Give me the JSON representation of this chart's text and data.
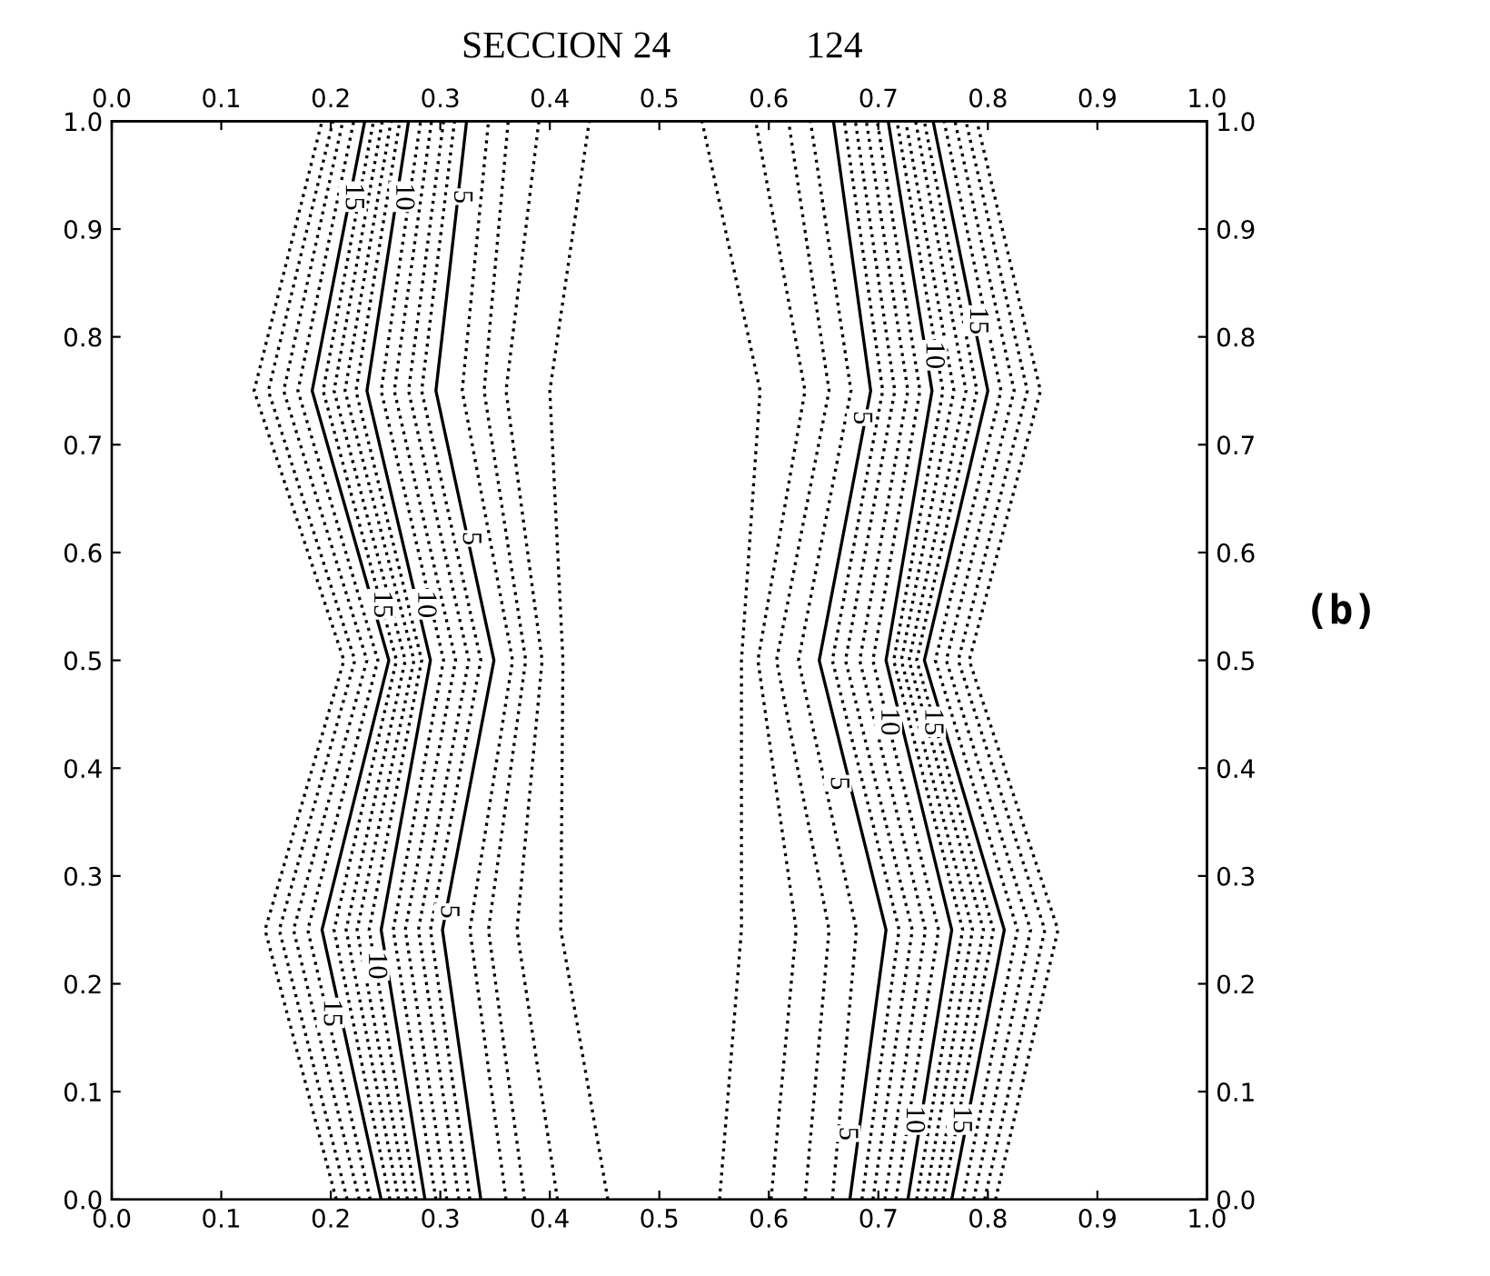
{
  "chart_data": {
    "type": "line",
    "title": "SECCION 24",
    "subtitle": "124",
    "xlim": [
      0,
      1
    ],
    "ylim": [
      0,
      1
    ],
    "x2lim": [
      0,
      1
    ],
    "y2lim": [
      0,
      1
    ],
    "xticks": [
      {
        "value": 0,
        "label": "0.0"
      },
      {
        "value": 0.1,
        "label": "0.1"
      },
      {
        "value": 0.2,
        "label": "0.2"
      },
      {
        "value": 0.3,
        "label": "0.3"
      },
      {
        "value": 0.4,
        "label": "0.4"
      },
      {
        "value": 0.5,
        "label": "0.5"
      },
      {
        "value": 0.6,
        "label": "0.6"
      },
      {
        "value": 0.7,
        "label": "0.7"
      },
      {
        "value": 0.8,
        "label": "0.8"
      },
      {
        "value": 0.9,
        "label": "0.9"
      },
      {
        "value": 1,
        "label": "1.0"
      }
    ],
    "x2ticks": [
      {
        "value": 0,
        "label": "0.0"
      },
      {
        "value": 0.1,
        "label": "0.1"
      },
      {
        "value": 0.2,
        "label": "0.2"
      },
      {
        "value": 0.3,
        "label": "0.3"
      },
      {
        "value": 0.4,
        "label": "0.4"
      },
      {
        "value": 0.5,
        "label": "0.5"
      },
      {
        "value": 0.6,
        "label": "0.6"
      },
      {
        "value": 0.7,
        "label": "0.7"
      },
      {
        "value": 0.8,
        "label": "0.8"
      },
      {
        "value": 0.9,
        "label": "0.9"
      },
      {
        "value": 1,
        "label": "1.0"
      }
    ],
    "yticks": [
      {
        "value": 0,
        "label": "0.0"
      },
      {
        "value": 0.1,
        "label": "0.1"
      },
      {
        "value": 0.2,
        "label": "0.2"
      },
      {
        "value": 0.3,
        "label": "0.3"
      },
      {
        "value": 0.4,
        "label": "0.4"
      },
      {
        "value": 0.5,
        "label": "0.5"
      },
      {
        "value": 0.6,
        "label": "0.6"
      },
      {
        "value": 0.7,
        "label": "0.7"
      },
      {
        "value": 0.8,
        "label": "0.8"
      },
      {
        "value": 0.9,
        "label": "0.9"
      },
      {
        "value": 1,
        "label": "1.0"
      }
    ],
    "y2ticks": [
      {
        "value": 0,
        "label": "0.0"
      },
      {
        "value": 0.1,
        "label": "0.1"
      },
      {
        "value": 0.2,
        "label": "0.2"
      },
      {
        "value": 0.3,
        "label": "0.3"
      },
      {
        "value": 0.4,
        "label": "0.4"
      },
      {
        "value": 0.5,
        "label": "0.5"
      },
      {
        "value": 0.6,
        "label": "0.6"
      },
      {
        "value": 0.7,
        "label": "0.7"
      },
      {
        "value": 0.8,
        "label": "0.8"
      },
      {
        "value": 0.9,
        "label": "0.9"
      },
      {
        "value": 1,
        "label": "1.0"
      }
    ],
    "grid": false,
    "legend": false,
    "marker": "none",
    "annotations": [
      {
        "text": "15",
        "x": 0.22,
        "y": 0.93
      },
      {
        "text": "10",
        "x": 0.266,
        "y": 0.93
      },
      {
        "text": "5",
        "x": 0.319,
        "y": 0.93
      },
      {
        "text": "15",
        "x": 0.246,
        "y": 0.552
      },
      {
        "text": "10",
        "x": 0.286,
        "y": 0.552
      },
      {
        "text": "5",
        "x": 0.327,
        "y": 0.613
      },
      {
        "text": "15",
        "x": 0.2,
        "y": 0.173
      },
      {
        "text": "10",
        "x": 0.241,
        "y": 0.217
      },
      {
        "text": "5",
        "x": 0.307,
        "y": 0.267
      },
      {
        "text": "5",
        "x": 0.671,
        "y": 0.061
      },
      {
        "text": "10",
        "x": 0.732,
        "y": 0.074
      },
      {
        "text": "15",
        "x": 0.775,
        "y": 0.074
      },
      {
        "text": "5",
        "x": 0.663,
        "y": 0.386
      },
      {
        "text": "10",
        "x": 0.709,
        "y": 0.443
      },
      {
        "text": "15",
        "x": 0.749,
        "y": 0.443
      },
      {
        "text": "5",
        "x": 0.684,
        "y": 0.725
      },
      {
        "text": "10",
        "x": 0.75,
        "y": 0.783
      },
      {
        "text": "15",
        "x": 0.79,
        "y": 0.815
      },
      "(b)"
    ],
    "series": [
      {
        "color": "#000000",
        "line_style": "dotted",
        "x": [
          0.453,
          0.41,
          0.412,
          0.4,
          0.436
        ],
        "values": [
          0,
          0.25,
          0.5,
          0.75,
          1
        ]
      },
      {
        "color": "#000000",
        "line_style": "dotted",
        "x": [
          0.407,
          0.37,
          0.393,
          0.36,
          0.39
        ],
        "values": [
          0,
          0.25,
          0.5,
          0.75,
          1
        ]
      },
      {
        "color": "#000000",
        "line_style": "dotted",
        "x": [
          0.377,
          0.344,
          0.378,
          0.34,
          0.362
        ],
        "values": [
          0,
          0.25,
          0.5,
          0.75,
          1
        ]
      },
      {
        "color": "#000000",
        "line_style": "dotted",
        "x": [
          0.36,
          0.327,
          0.366,
          0.32,
          0.344
        ],
        "values": [
          0,
          0.25,
          0.5,
          0.75,
          1
        ]
      },
      {
        "color": "#000000",
        "line_style": "solid",
        "x": [
          0.337,
          0.302,
          0.349,
          0.296,
          0.324
        ],
        "values": [
          0,
          0.25,
          0.5,
          0.75,
          1
        ]
      },
      {
        "color": "#000000",
        "line_style": "dotted",
        "x": [
          0.327,
          0.291,
          0.337,
          0.283,
          0.313
        ],
        "values": [
          0,
          0.25,
          0.5,
          0.75,
          1
        ]
      },
      {
        "color": "#000000",
        "line_style": "dotted",
        "x": [
          0.317,
          0.28,
          0.326,
          0.271,
          0.303
        ],
        "values": [
          0,
          0.25,
          0.5,
          0.75,
          1
        ]
      },
      {
        "color": "#000000",
        "line_style": "dotted",
        "x": [
          0.306,
          0.268,
          0.314,
          0.258,
          0.292
        ],
        "values": [
          0,
          0.25,
          0.5,
          0.75,
          1
        ]
      },
      {
        "color": "#000000",
        "line_style": "dotted",
        "x": [
          0.296,
          0.257,
          0.303,
          0.246,
          0.282
        ],
        "values": [
          0,
          0.25,
          0.5,
          0.75,
          1
        ]
      },
      {
        "color": "#000000",
        "line_style": "solid",
        "x": [
          0.286,
          0.246,
          0.291,
          0.233,
          0.271
        ],
        "values": [
          0,
          0.25,
          0.5,
          0.75,
          1
        ]
      },
      {
        "color": "#000000",
        "line_style": "dotted",
        "x": [
          0.278,
          0.235,
          0.283,
          0.223,
          0.263
        ],
        "values": [
          0,
          0.25,
          0.5,
          0.75,
          1
        ]
      },
      {
        "color": "#000000",
        "line_style": "dotted",
        "x": [
          0.27,
          0.224,
          0.276,
          0.213,
          0.255
        ],
        "values": [
          0,
          0.25,
          0.5,
          0.75,
          1
        ]
      },
      {
        "color": "#000000",
        "line_style": "dotted",
        "x": [
          0.262,
          0.214,
          0.268,
          0.203,
          0.247
        ],
        "values": [
          0,
          0.25,
          0.5,
          0.75,
          1
        ]
      },
      {
        "color": "#000000",
        "line_style": "dotted",
        "x": [
          0.254,
          0.203,
          0.26,
          0.193,
          0.239
        ],
        "values": [
          0,
          0.25,
          0.5,
          0.75,
          1
        ]
      },
      {
        "color": "#000000",
        "line_style": "solid",
        "x": [
          0.246,
          0.192,
          0.253,
          0.183,
          0.231
        ],
        "values": [
          0,
          0.25,
          0.5,
          0.75,
          1
        ]
      },
      {
        "color": "#000000",
        "line_style": "dotted",
        "x": [
          0.236,
          0.179,
          0.243,
          0.17,
          0.221
        ],
        "values": [
          0,
          0.25,
          0.5,
          0.75,
          1
        ]
      },
      {
        "color": "#000000",
        "line_style": "dotted",
        "x": [
          0.226,
          0.166,
          0.233,
          0.157,
          0.211
        ],
        "values": [
          0,
          0.25,
          0.5,
          0.75,
          1
        ]
      },
      {
        "color": "#000000",
        "line_style": "dotted",
        "x": [
          0.215,
          0.153,
          0.222,
          0.143,
          0.202
        ],
        "values": [
          0,
          0.25,
          0.5,
          0.75,
          1
        ]
      },
      {
        "color": "#000000",
        "line_style": "dotted",
        "x": [
          0.205,
          0.14,
          0.212,
          0.13,
          0.192
        ],
        "values": [
          0,
          0.25,
          0.5,
          0.75,
          1
        ]
      },
      {
        "color": "#000000",
        "line_style": "dotted",
        "x": [
          0.555,
          0.575,
          0.575,
          0.592,
          0.539
        ],
        "values": [
          0,
          0.25,
          0.5,
          0.75,
          1
        ]
      },
      {
        "color": "#000000",
        "line_style": "dotted",
        "x": [
          0.602,
          0.625,
          0.59,
          0.633,
          0.588
        ],
        "values": [
          0,
          0.25,
          0.5,
          0.75,
          1
        ]
      },
      {
        "color": "#000000",
        "line_style": "dotted",
        "x": [
          0.633,
          0.655,
          0.607,
          0.655,
          0.618
        ],
        "values": [
          0,
          0.25,
          0.5,
          0.75,
          1
        ]
      },
      {
        "color": "#000000",
        "line_style": "dotted",
        "x": [
          0.658,
          0.68,
          0.627,
          0.675,
          0.638
        ],
        "values": [
          0,
          0.25,
          0.5,
          0.75,
          1
        ]
      },
      {
        "color": "#000000",
        "line_style": "solid",
        "x": [
          0.674,
          0.707,
          0.646,
          0.693,
          0.659
        ],
        "values": [
          0,
          0.25,
          0.5,
          0.75,
          1
        ]
      },
      {
        "color": "#000000",
        "line_style": "dotted",
        "x": [
          0.685,
          0.719,
          0.658,
          0.704,
          0.669
        ],
        "values": [
          0,
          0.25,
          0.5,
          0.75,
          1
        ]
      },
      {
        "color": "#000000",
        "line_style": "dotted",
        "x": [
          0.695,
          0.731,
          0.67,
          0.715,
          0.679
        ],
        "values": [
          0,
          0.25,
          0.5,
          0.75,
          1
        ]
      },
      {
        "color": "#000000",
        "line_style": "dotted",
        "x": [
          0.706,
          0.743,
          0.683,
          0.727,
          0.689
        ],
        "values": [
          0,
          0.25,
          0.5,
          0.75,
          1
        ]
      },
      {
        "color": "#000000",
        "line_style": "dotted",
        "x": [
          0.716,
          0.755,
          0.695,
          0.738,
          0.699
        ],
        "values": [
          0,
          0.25,
          0.5,
          0.75,
          1
        ]
      },
      {
        "color": "#000000",
        "line_style": "solid",
        "x": [
          0.727,
          0.767,
          0.707,
          0.749,
          0.709
        ],
        "values": [
          0,
          0.25,
          0.5,
          0.75,
          1
        ]
      },
      {
        "color": "#000000",
        "line_style": "dotted",
        "x": [
          0.735,
          0.777,
          0.714,
          0.759,
          0.717
        ],
        "values": [
          0,
          0.25,
          0.5,
          0.75,
          1
        ]
      },
      {
        "color": "#000000",
        "line_style": "dotted",
        "x": [
          0.743,
          0.786,
          0.721,
          0.769,
          0.725
        ],
        "values": [
          0,
          0.25,
          0.5,
          0.75,
          1
        ]
      },
      {
        "color": "#000000",
        "line_style": "dotted",
        "x": [
          0.751,
          0.796,
          0.728,
          0.78,
          0.734
        ],
        "values": [
          0,
          0.25,
          0.5,
          0.75,
          1
        ]
      },
      {
        "color": "#000000",
        "line_style": "dotted",
        "x": [
          0.759,
          0.805,
          0.735,
          0.79,
          0.742
        ],
        "values": [
          0,
          0.25,
          0.5,
          0.75,
          1
        ]
      },
      {
        "color": "#000000",
        "line_style": "solid",
        "x": [
          0.767,
          0.815,
          0.742,
          0.8,
          0.75
        ],
        "values": [
          0,
          0.25,
          0.5,
          0.75,
          1
        ]
      },
      {
        "color": "#000000",
        "line_style": "dotted",
        "x": [
          0.777,
          0.827,
          0.752,
          0.812,
          0.76
        ],
        "values": [
          0,
          0.25,
          0.5,
          0.75,
          1
        ]
      },
      {
        "color": "#000000",
        "line_style": "dotted",
        "x": [
          0.787,
          0.839,
          0.762,
          0.824,
          0.77
        ],
        "values": [
          0,
          0.25,
          0.5,
          0.75,
          1
        ]
      },
      {
        "color": "#000000",
        "line_style": "dotted",
        "x": [
          0.797,
          0.852,
          0.773,
          0.836,
          0.78
        ],
        "values": [
          0,
          0.25,
          0.5,
          0.75,
          1
        ]
      },
      {
        "color": "#000000",
        "line_style": "dotted",
        "x": [
          0.807,
          0.864,
          0.783,
          0.848,
          0.79
        ],
        "values": [
          0,
          0.25,
          0.5,
          0.75,
          1
        ]
      }
    ]
  }
}
